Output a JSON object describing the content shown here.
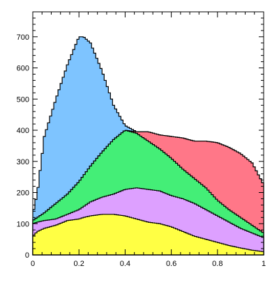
{
  "chart_data": {
    "type": "area",
    "stacked": true,
    "histogram": true,
    "title": "",
    "xlabel": "",
    "ylabel": "",
    "xlim": [
      0,
      1
    ],
    "ylim": [
      0,
      780
    ],
    "x_ticks": [
      "0",
      "0.2",
      "0.4",
      "0.6",
      "0.8",
      "1"
    ],
    "y_ticks": [
      "0",
      "100",
      "200",
      "300",
      "400",
      "500",
      "600",
      "700"
    ],
    "grid": false,
    "legend": "none",
    "x_control": [
      0,
      0.02,
      0.05,
      0.1,
      0.15,
      0.2,
      0.22,
      0.25,
      0.3,
      0.35,
      0.4,
      0.45,
      0.5,
      0.55,
      0.6,
      0.65,
      0.7,
      0.75,
      0.8,
      0.85,
      0.9,
      0.95,
      1.0
    ],
    "series": [
      {
        "color": "#ffff44",
        "cumulative_top": [
          60,
          75,
          85,
          95,
          110,
          115,
          120,
          125,
          130,
          130,
          125,
          115,
          105,
          100,
          90,
          75,
          60,
          50,
          40,
          30,
          22,
          15,
          10
        ]
      },
      {
        "color": "#dda0ff",
        "cumulative_top": [
          100,
          105,
          110,
          115,
          130,
          145,
          155,
          170,
          185,
          195,
          210,
          215,
          210,
          205,
          190,
          180,
          165,
          145,
          125,
          105,
          85,
          70,
          55
        ]
      },
      {
        "color": "#44ee77",
        "cumulative_top": [
          110,
          120,
          135,
          165,
          195,
          235,
          255,
          285,
          330,
          370,
          400,
          390,
          365,
          340,
          310,
          275,
          245,
          215,
          175,
          145,
          120,
          95,
          70
        ]
      },
      {
        "color": "#ff7788",
        "cumulative_top": [
          110,
          120,
          135,
          165,
          195,
          235,
          255,
          285,
          330,
          370,
          400,
          395,
          395,
          385,
          380,
          375,
          365,
          365,
          360,
          345,
          325,
          295,
          225
        ]
      },
      {
        "color": "#7ec4ff",
        "cumulative_top": [
          130,
          200,
          380,
          500,
          610,
          700,
          700,
          680,
          590,
          480,
          415,
          395,
          395,
          385,
          380,
          375,
          365,
          365,
          360,
          345,
          325,
          295,
          225
        ]
      }
    ]
  }
}
